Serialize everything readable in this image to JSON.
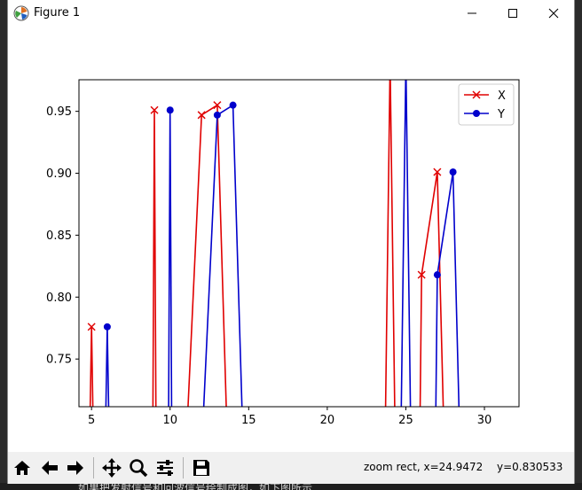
{
  "window": {
    "title": "Figure 1"
  },
  "toolbar": {
    "buttons": [
      "home-icon",
      "back-icon",
      "forward-icon",
      "pan-icon",
      "zoom-icon",
      "configure-subplots-icon",
      "save-icon"
    ],
    "status_mode": "zoom rect, x=24.9472",
    "status_y": "y=0.830533"
  },
  "backdrop": {
    "text": "如果把发射信号和回波信号绘制成图，如下图所示"
  },
  "chart_data": {
    "type": "line",
    "title": "",
    "xlabel": "",
    "ylabel": "",
    "xlim": [
      4.2,
      32.2
    ],
    "ylim": [
      0.7115,
      0.9755
    ],
    "xticks": [
      5,
      10,
      15,
      20,
      25,
      30
    ],
    "yticks": [
      0.75,
      0.8,
      0.85,
      0.9,
      0.95
    ],
    "xtick_labels": [
      "5",
      "10",
      "15",
      "20",
      "25",
      "30"
    ],
    "ytick_labels": [
      "0.75",
      "0.80",
      "0.85",
      "0.90",
      "0.95"
    ],
    "grid": false,
    "legend_position": "top-right",
    "series": [
      {
        "name": "X",
        "color": "#e00000",
        "marker": "x",
        "points": [
          [
            4.9,
            0.7
          ],
          [
            5,
            0.776
          ],
          [
            5.1,
            0.7
          ],
          [
            8.9,
            0.7
          ],
          [
            9,
            0.951
          ],
          [
            9.1,
            0.7
          ],
          [
            11.1,
            0.7
          ],
          [
            12,
            0.947
          ],
          [
            13,
            0.955
          ],
          [
            13.6,
            0.7
          ],
          [
            23.7,
            0.7
          ],
          [
            24,
            0.99
          ],
          [
            24.3,
            0.7
          ],
          [
            25.9,
            0.7
          ],
          [
            26,
            0.818
          ],
          [
            27,
            0.901
          ],
          [
            27.4,
            0.7
          ]
        ]
      },
      {
        "name": "Y",
        "color": "#0000cc",
        "marker": "o",
        "points": [
          [
            5.9,
            0.7
          ],
          [
            6,
            0.776
          ],
          [
            6.1,
            0.7
          ],
          [
            9.9,
            0.7
          ],
          [
            10,
            0.951
          ],
          [
            10.1,
            0.7
          ],
          [
            12.1,
            0.7
          ],
          [
            13,
            0.947
          ],
          [
            14,
            0.955
          ],
          [
            14.6,
            0.7
          ],
          [
            24.7,
            0.7
          ],
          [
            25,
            0.99
          ],
          [
            25.3,
            0.7
          ],
          [
            26.9,
            0.7
          ],
          [
            27,
            0.818
          ],
          [
            28,
            0.901
          ],
          [
            28.4,
            0.7
          ]
        ]
      }
    ],
    "markers": {
      "X": [
        [
          5,
          0.776
        ],
        [
          9,
          0.951
        ],
        [
          12,
          0.947
        ],
        [
          13,
          0.955
        ],
        [
          26,
          0.818
        ],
        [
          27,
          0.901
        ]
      ],
      "Y": [
        [
          6,
          0.776
        ],
        [
          10,
          0.951
        ],
        [
          13,
          0.947
        ],
        [
          14,
          0.955
        ],
        [
          27,
          0.818
        ],
        [
          28,
          0.901
        ]
      ]
    }
  }
}
